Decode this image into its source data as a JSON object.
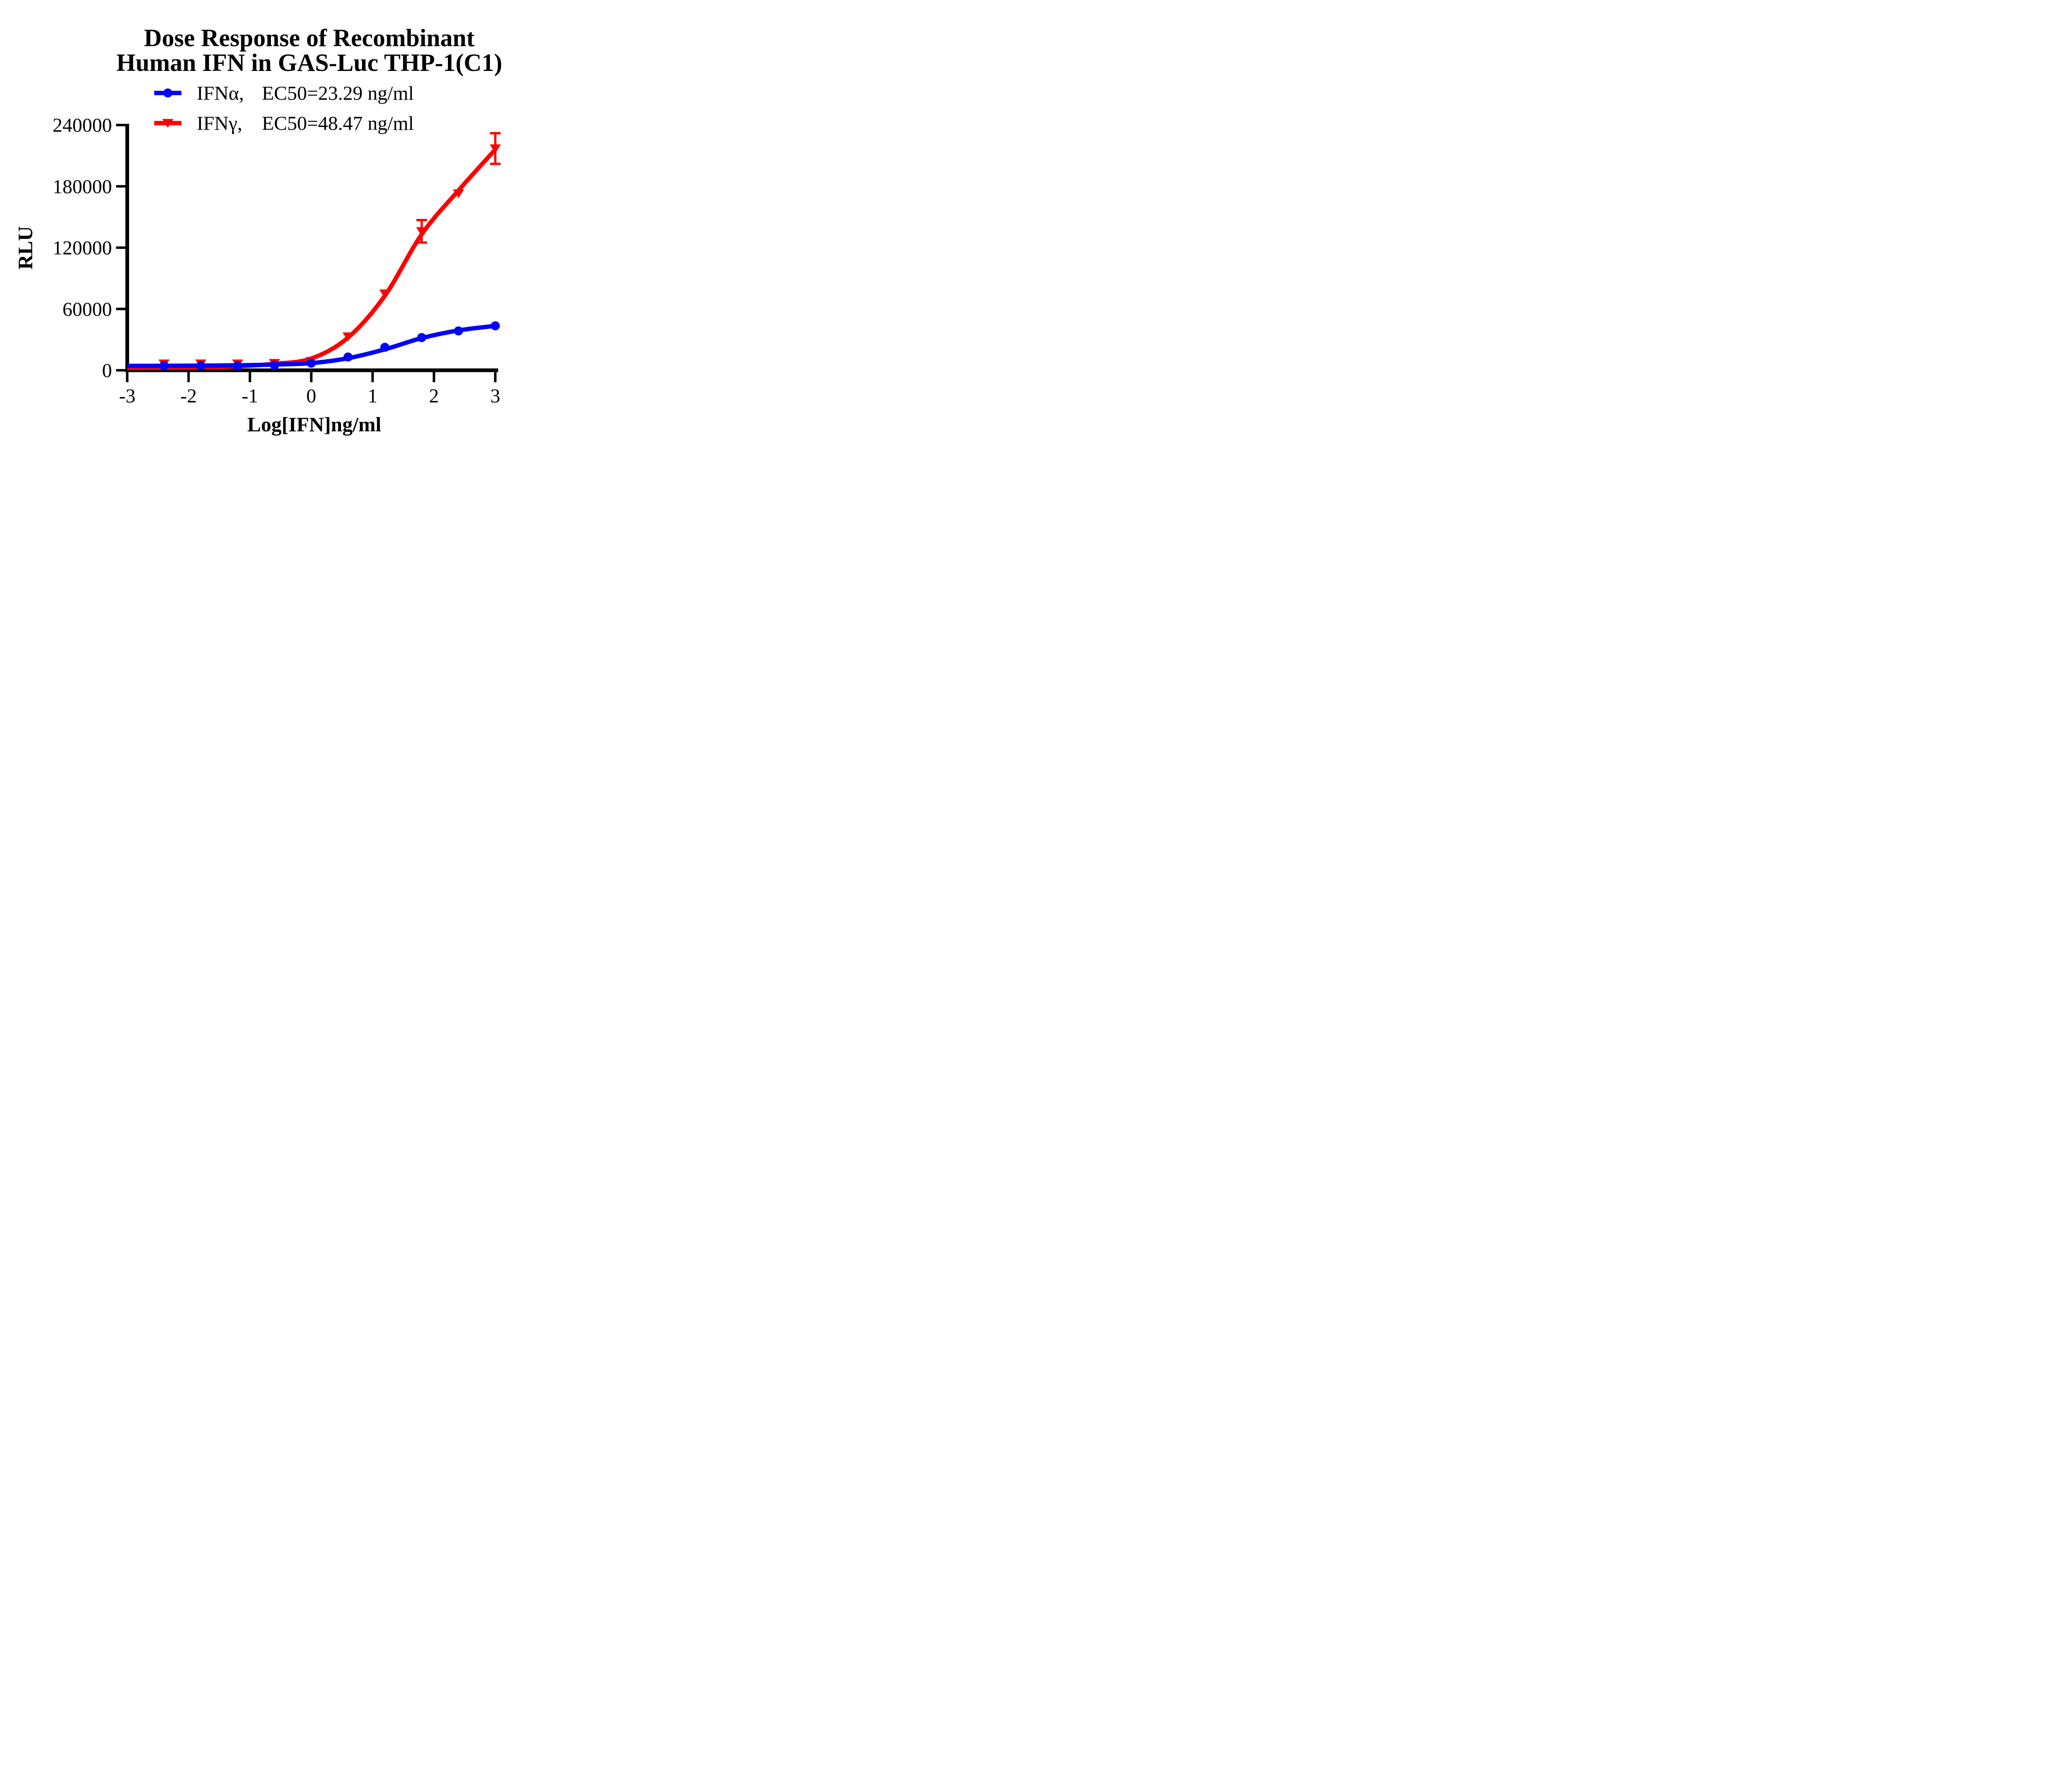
{
  "chart_data": {
    "type": "scatter",
    "title_lines": [
      "Dose Response of Recombinant",
      "Human IFN in GAS-Luc THP-1(C1)"
    ],
    "xlabel": "Log[IFN]ng/ml",
    "ylabel": "RLU",
    "xlim": [
      -3,
      3
    ],
    "ylim": [
      0,
      240000
    ],
    "x_ticks": [
      "-3",
      "-2",
      "-1",
      "0",
      "1",
      "2",
      "3"
    ],
    "y_ticks": [
      "0",
      "60000",
      "120000",
      "180000",
      "240000"
    ],
    "grid": false,
    "legend_position": "top-center",
    "axis_color": "#000000",
    "background_color": "#ffffff",
    "x": [
      -2.4,
      -1.8,
      -1.2,
      -0.6,
      0,
      0.6,
      1.2,
      1.8,
      2.4,
      3
    ],
    "curve_x": [
      -3,
      -2.4,
      -1.8,
      -1.2,
      -0.6,
      0,
      0.6,
      1.2,
      1.8,
      2.4,
      3
    ],
    "series": [
      {
        "id": "ifn-alpha",
        "name": "IFNα",
        "legend_name": "IFNα,",
        "legend_ec50": "EC50=23.29 ng/ml",
        "ec50_ng_ml": 23.29,
        "marker": "circle",
        "color": "#0000ff",
        "values": [
          4500,
          4500,
          4500,
          5000,
          7000,
          13000,
          22500,
          32000,
          38500,
          43500
        ],
        "errors": [
          0,
          0,
          0,
          0,
          0,
          0,
          0,
          0,
          0,
          0
        ],
        "curve_y": [
          4300,
          4400,
          4550,
          4900,
          5600,
          7000,
          11800,
          20500,
          31500,
          39000,
          43500
        ],
        "fit": {
          "bottom": 4300,
          "top": 45500,
          "logEC50": 1.367,
          "hill": 0.8
        }
      },
      {
        "id": "ifn-gamma",
        "name": "IFNγ",
        "legend_name": "IFNγ,",
        "legend_ec50": "EC50=48.47 ng/ml",
        "ec50_ng_ml": 48.47,
        "marker": "triangle-down",
        "color": "#ff0000",
        "values": [
          6500,
          6500,
          6500,
          7000,
          9000,
          33000,
          75000,
          136000,
          173000,
          217000
        ],
        "errors": [
          0,
          0,
          0,
          0,
          0,
          0,
          0,
          11000,
          0,
          15000
        ],
        "curve_y": [
          2300,
          2500,
          2900,
          3900,
          6300,
          11500,
          32000,
          73000,
          133000,
          176000,
          216000
        ],
        "fit": {
          "bottom": 2200,
          "top": 234000,
          "logEC50": 1.6855,
          "hill": 0.75
        }
      }
    ]
  }
}
